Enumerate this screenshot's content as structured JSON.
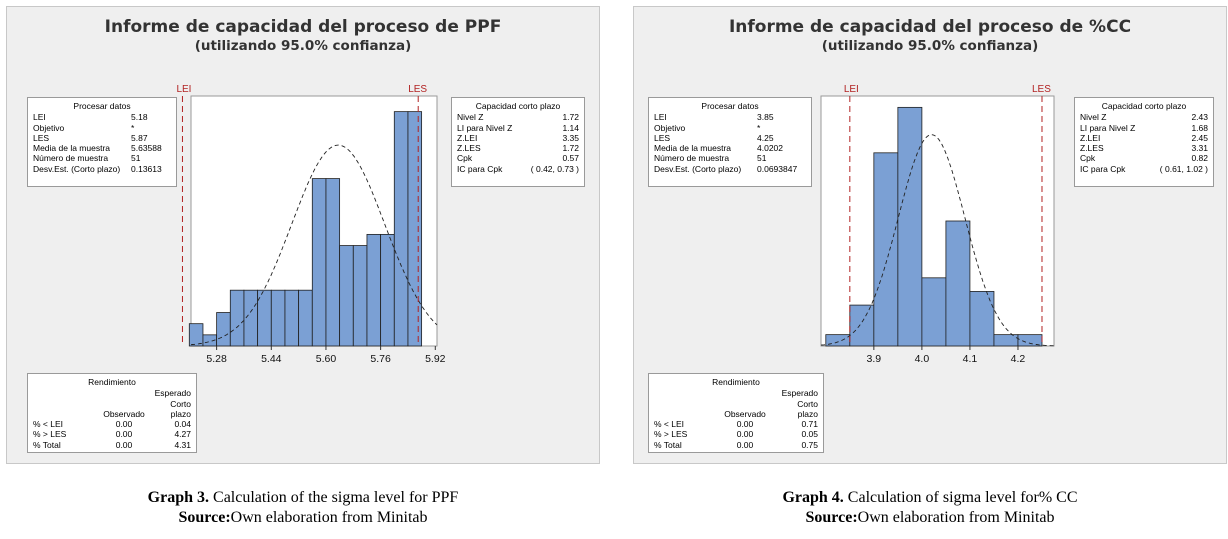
{
  "charts": [
    {
      "title": "Informe de capacidad del proceso de PPF",
      "subtitle": "(utilizando 95.0% confianza)",
      "process_data": {
        "header": "Procesar datos",
        "rows": [
          {
            "label": "LEI",
            "value": "5.18"
          },
          {
            "label": "Objetivo",
            "value": "*"
          },
          {
            "label": "LES",
            "value": "5.87"
          },
          {
            "label": "Media de la muestra",
            "value": "5.63588"
          },
          {
            "label": "Número de muestra",
            "value": "51"
          },
          {
            "label": "Desv.Est. (Corto plazo)",
            "value": "0.13613"
          }
        ]
      },
      "capability": {
        "header": "Capacidad corto plazo",
        "rows": [
          {
            "label": "Nivel Z",
            "value": "1.72"
          },
          {
            "label": "LI para Nivel Z",
            "value": "1.14"
          },
          {
            "label": "Z.LEI",
            "value": "3.35"
          },
          {
            "label": "Z.LES",
            "value": "1.72"
          },
          {
            "label": "Cpk",
            "value": "0.57"
          },
          {
            "label": "IC para Cpk",
            "value": "( 0.42, 0.73 )"
          }
        ]
      },
      "performance": {
        "header": "Rendimiento",
        "col_expected_1": "Esperado Corto",
        "col_observed": "Observado",
        "col_expected_2": "plazo",
        "rows": [
          {
            "label": "% < LEI",
            "observed": "0.00",
            "expected": "0.04"
          },
          {
            "label": "% > LES",
            "observed": "0.00",
            "expected": "4.27"
          },
          {
            "label": "% Total",
            "observed": "0.00",
            "expected": "4.31"
          }
        ]
      },
      "caption": {
        "bold": "Graph 3.",
        "text": " Calculation of the sigma level for PPF",
        "source_bold": "Source:",
        "source_text": "Own elaboration from Minitab"
      }
    },
    {
      "title": "Informe de capacidad del proceso de %CC",
      "subtitle": "(utilizando 95.0% confianza)",
      "process_data": {
        "header": "Procesar datos",
        "rows": [
          {
            "label": "LEI",
            "value": "3.85"
          },
          {
            "label": "Objetivo",
            "value": "*"
          },
          {
            "label": "LES",
            "value": "4.25"
          },
          {
            "label": "Media de la muestra",
            "value": "4.0202"
          },
          {
            "label": "Número de muestra",
            "value": "51"
          },
          {
            "label": "Desv.Est. (Corto plazo)",
            "value": "0.0693847"
          }
        ]
      },
      "capability": {
        "header": "Capacidad corto plazo",
        "rows": [
          {
            "label": "Nivel Z",
            "value": "2.43"
          },
          {
            "label": "LI para Nivel Z",
            "value": "1.68"
          },
          {
            "label": "Z.LEI",
            "value": "2.45"
          },
          {
            "label": "Z.LES",
            "value": "3.31"
          },
          {
            "label": "Cpk",
            "value": "0.82"
          },
          {
            "label": "IC para Cpk",
            "value": "( 0.61, 1.02 )"
          }
        ]
      },
      "performance": {
        "header": "Rendimiento",
        "col_expected_1": "Esperado Corto",
        "col_observed": "Observado",
        "col_expected_2": "plazo",
        "rows": [
          {
            "label": "% < LEI",
            "observed": "0.00",
            "expected": "0.71"
          },
          {
            "label": "% > LES",
            "observed": "0.00",
            "expected": "0.05"
          },
          {
            "label": "% Total",
            "observed": "0.00",
            "expected": "0.75"
          }
        ]
      },
      "caption": {
        "bold": "Graph 4.",
        "text": " Calculation of sigma level for% CC",
        "source_bold": "Source:",
        "source_text": "Own elaboration from Minitab"
      }
    }
  ],
  "chart_data": [
    {
      "type": "bar",
      "subtype": "histogram",
      "title": "Informe de capacidad del proceso de PPF",
      "bin_edges": [
        5.2,
        5.24,
        5.28,
        5.32,
        5.36,
        5.4,
        5.44,
        5.48,
        5.52,
        5.56,
        5.6,
        5.64,
        5.68,
        5.72,
        5.76,
        5.8,
        5.84,
        5.88
      ],
      "bins": [
        {
          "x0": 5.2,
          "x1": 5.24,
          "value": 1
        },
        {
          "x0": 5.24,
          "x1": 5.28,
          "value": 0.5
        },
        {
          "x0": 5.28,
          "x1": 5.32,
          "value": 1.5
        },
        {
          "x0": 5.32,
          "x1": 5.36,
          "value": 2.5
        },
        {
          "x0": 5.36,
          "x1": 5.4,
          "value": 2.5
        },
        {
          "x0": 5.4,
          "x1": 5.44,
          "value": 2.5
        },
        {
          "x0": 5.44,
          "x1": 5.48,
          "value": 2.5
        },
        {
          "x0": 5.48,
          "x1": 5.52,
          "value": 2.5
        },
        {
          "x0": 5.52,
          "x1": 5.56,
          "value": 2.5
        },
        {
          "x0": 5.56,
          "x1": 5.6,
          "value": 7.5
        },
        {
          "x0": 5.6,
          "x1": 5.64,
          "value": 7.5
        },
        {
          "x0": 5.64,
          "x1": 5.68,
          "value": 4.5
        },
        {
          "x0": 5.68,
          "x1": 5.72,
          "value": 4.5
        },
        {
          "x0": 5.72,
          "x1": 5.76,
          "value": 5.0
        },
        {
          "x0": 5.76,
          "x1": 5.8,
          "value": 5.0
        },
        {
          "x0": 5.8,
          "x1": 5.84,
          "value": 10.5
        },
        {
          "x0": 5.84,
          "x1": 5.88,
          "value": 10.5
        }
      ],
      "xlim": [
        5.205,
        5.925
      ],
      "ylim": [
        0,
        11.2
      ],
      "xticks": [
        5.28,
        5.44,
        5.6,
        5.76,
        5.92
      ],
      "xtick_labels": [
        "5.28",
        "5.44",
        "5.60",
        "5.76",
        "5.92"
      ],
      "lsl": 5.18,
      "usl": 5.87,
      "lsl_label": "LEI",
      "usl_label": "LES",
      "normal_curve": {
        "mean": 5.63588,
        "std": 0.13613,
        "peak": 9.0
      }
    },
    {
      "type": "bar",
      "subtype": "histogram",
      "title": "Informe de capacidad del proceso de %CC",
      "bins": [
        {
          "x0": 3.8,
          "x1": 3.85,
          "value": 0.5
        },
        {
          "x0": 3.85,
          "x1": 3.9,
          "value": 1.8
        },
        {
          "x0": 3.9,
          "x1": 3.95,
          "value": 8.5
        },
        {
          "x0": 3.95,
          "x1": 4.0,
          "value": 10.5
        },
        {
          "x0": 4.0,
          "x1": 4.05,
          "value": 3.0
        },
        {
          "x0": 4.05,
          "x1": 4.1,
          "value": 5.5
        },
        {
          "x0": 4.1,
          "x1": 4.15,
          "value": 2.4
        },
        {
          "x0": 4.15,
          "x1": 4.2,
          "value": 0.5
        },
        {
          "x0": 4.2,
          "x1": 4.25,
          "value": 0.5
        }
      ],
      "xlim": [
        3.79,
        4.275
      ],
      "ylim": [
        0,
        11.0
      ],
      "xticks": [
        3.9,
        4.0,
        4.1,
        4.2
      ],
      "xtick_labels": [
        "3.9",
        "4.0",
        "4.1",
        "4.2"
      ],
      "lsl": 3.85,
      "usl": 4.25,
      "lsl_label": "LEI",
      "usl_label": "LES",
      "normal_curve": {
        "mean": 4.0202,
        "std": 0.0693847,
        "peak": 9.3
      }
    }
  ],
  "colors": {
    "bar_fill": "#7ba0d4",
    "bar_stroke": "#1f1f1f",
    "spec_line": "#b22222",
    "curve": "#222222"
  }
}
